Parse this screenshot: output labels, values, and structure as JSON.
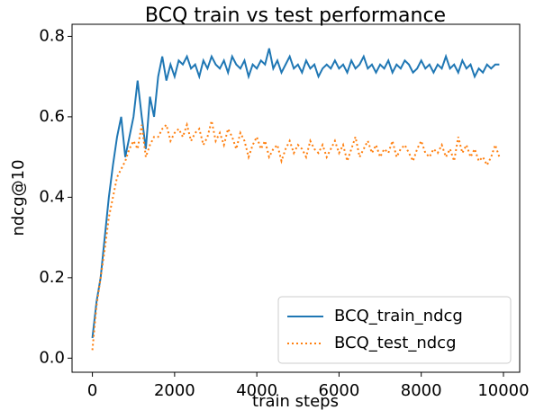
{
  "chart_data": {
    "type": "line",
    "title": "BCQ train vs test performance",
    "xlabel": "train steps",
    "ylabel": "ndcg@10",
    "x": [
      0,
      100,
      200,
      300,
      400,
      500,
      600,
      700,
      800,
      900,
      1000,
      1100,
      1200,
      1300,
      1400,
      1500,
      1600,
      1700,
      1800,
      1900,
      2000,
      2100,
      2200,
      2300,
      2400,
      2500,
      2600,
      2700,
      2800,
      2900,
      3000,
      3100,
      3200,
      3300,
      3400,
      3500,
      3600,
      3700,
      3800,
      3900,
      4000,
      4100,
      4200,
      4300,
      4400,
      4500,
      4600,
      4700,
      4800,
      4900,
      5000,
      5100,
      5200,
      5300,
      5400,
      5500,
      5600,
      5700,
      5800,
      5900,
      6000,
      6100,
      6200,
      6300,
      6400,
      6500,
      6600,
      6700,
      6800,
      6900,
      7000,
      7100,
      7200,
      7300,
      7400,
      7500,
      7600,
      7700,
      7800,
      7900,
      8000,
      8100,
      8200,
      8300,
      8400,
      8500,
      8600,
      8700,
      8800,
      8900,
      9000,
      9100,
      9200,
      9300,
      9400,
      9500,
      9600,
      9700,
      9800,
      9900
    ],
    "series": [
      {
        "name": "BCQ_train_ndcg",
        "color": "#1f77b4",
        "style": "solid",
        "values": [
          0.05,
          0.14,
          0.2,
          0.3,
          0.4,
          0.48,
          0.55,
          0.6,
          0.5,
          0.55,
          0.6,
          0.69,
          0.6,
          0.52,
          0.65,
          0.6,
          0.7,
          0.75,
          0.69,
          0.73,
          0.7,
          0.74,
          0.73,
          0.75,
          0.72,
          0.73,
          0.7,
          0.74,
          0.72,
          0.75,
          0.73,
          0.72,
          0.74,
          0.71,
          0.75,
          0.73,
          0.72,
          0.74,
          0.7,
          0.73,
          0.72,
          0.74,
          0.73,
          0.77,
          0.72,
          0.74,
          0.71,
          0.73,
          0.75,
          0.72,
          0.73,
          0.71,
          0.74,
          0.72,
          0.73,
          0.7,
          0.72,
          0.73,
          0.72,
          0.74,
          0.72,
          0.73,
          0.71,
          0.74,
          0.72,
          0.73,
          0.75,
          0.72,
          0.73,
          0.71,
          0.73,
          0.72,
          0.74,
          0.71,
          0.73,
          0.72,
          0.74,
          0.73,
          0.71,
          0.72,
          0.74,
          0.72,
          0.73,
          0.71,
          0.73,
          0.72,
          0.75,
          0.72,
          0.73,
          0.71,
          0.74,
          0.72,
          0.73,
          0.7,
          0.72,
          0.71,
          0.73,
          0.72,
          0.73,
          0.73
        ]
      },
      {
        "name": "BCQ_test_ndcg",
        "color": "#ff7f0e",
        "style": "dotted",
        "values": [
          0.02,
          0.13,
          0.2,
          0.27,
          0.35,
          0.4,
          0.45,
          0.47,
          0.49,
          0.52,
          0.54,
          0.52,
          0.58,
          0.5,
          0.53,
          0.55,
          0.55,
          0.57,
          0.58,
          0.54,
          0.56,
          0.57,
          0.55,
          0.58,
          0.54,
          0.56,
          0.57,
          0.53,
          0.55,
          0.59,
          0.54,
          0.56,
          0.53,
          0.57,
          0.55,
          0.52,
          0.56,
          0.54,
          0.5,
          0.53,
          0.55,
          0.52,
          0.54,
          0.5,
          0.52,
          0.53,
          0.49,
          0.52,
          0.54,
          0.51,
          0.53,
          0.52,
          0.5,
          0.54,
          0.52,
          0.51,
          0.53,
          0.5,
          0.52,
          0.54,
          0.51,
          0.53,
          0.49,
          0.52,
          0.55,
          0.5,
          0.52,
          0.54,
          0.51,
          0.53,
          0.5,
          0.52,
          0.51,
          0.54,
          0.5,
          0.52,
          0.53,
          0.51,
          0.49,
          0.52,
          0.54,
          0.51,
          0.5,
          0.52,
          0.51,
          0.53,
          0.5,
          0.52,
          0.49,
          0.55,
          0.51,
          0.53,
          0.5,
          0.52,
          0.49,
          0.5,
          0.48,
          0.5,
          0.53,
          0.5
        ]
      }
    ],
    "xlim": [
      -495,
      10395
    ],
    "xticks": [
      0,
      2000,
      4000,
      6000,
      8000,
      10000
    ],
    "ylim": [
      -0.035,
      0.83
    ],
    "yticks": [
      {
        "value": 0,
        "label": "0.0"
      },
      0.2,
      0.4,
      0.6,
      0.8
    ],
    "legend": "lower right"
  }
}
